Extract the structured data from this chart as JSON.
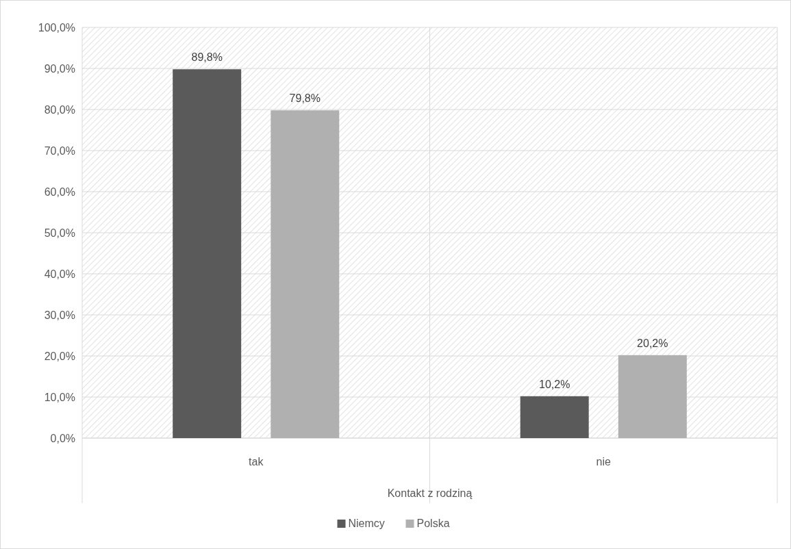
{
  "chart_data": {
    "type": "bar",
    "xlabel": "Kontakt z rodziną",
    "categories": [
      "tak",
      "nie"
    ],
    "series": [
      {
        "name": "Niemcy",
        "color": "#5a5a5a",
        "values": [
          89.8,
          10.2
        ],
        "value_labels": [
          "89,8%",
          "10,2%"
        ]
      },
      {
        "name": "Polska",
        "color": "#b0b0b0",
        "values": [
          79.8,
          20.2
        ],
        "value_labels": [
          "79,8%",
          "20,2%"
        ]
      }
    ],
    "ylim": [
      0,
      100
    ],
    "yticks": [
      {
        "value": 0,
        "label": "0,0%"
      },
      {
        "value": 10,
        "label": "10,0%"
      },
      {
        "value": 20,
        "label": "20,0%"
      },
      {
        "value": 30,
        "label": "30,0%"
      },
      {
        "value": 40,
        "label": "40,0%"
      },
      {
        "value": 50,
        "label": "50,0%"
      },
      {
        "value": 60,
        "label": "60,0%"
      },
      {
        "value": 70,
        "label": "70,0%"
      },
      {
        "value": 80,
        "label": "80,0%"
      },
      {
        "value": 90,
        "label": "90,0%"
      },
      {
        "value": 100,
        "label": "100,0%"
      }
    ],
    "grid": "y",
    "legend": "bottom"
  }
}
